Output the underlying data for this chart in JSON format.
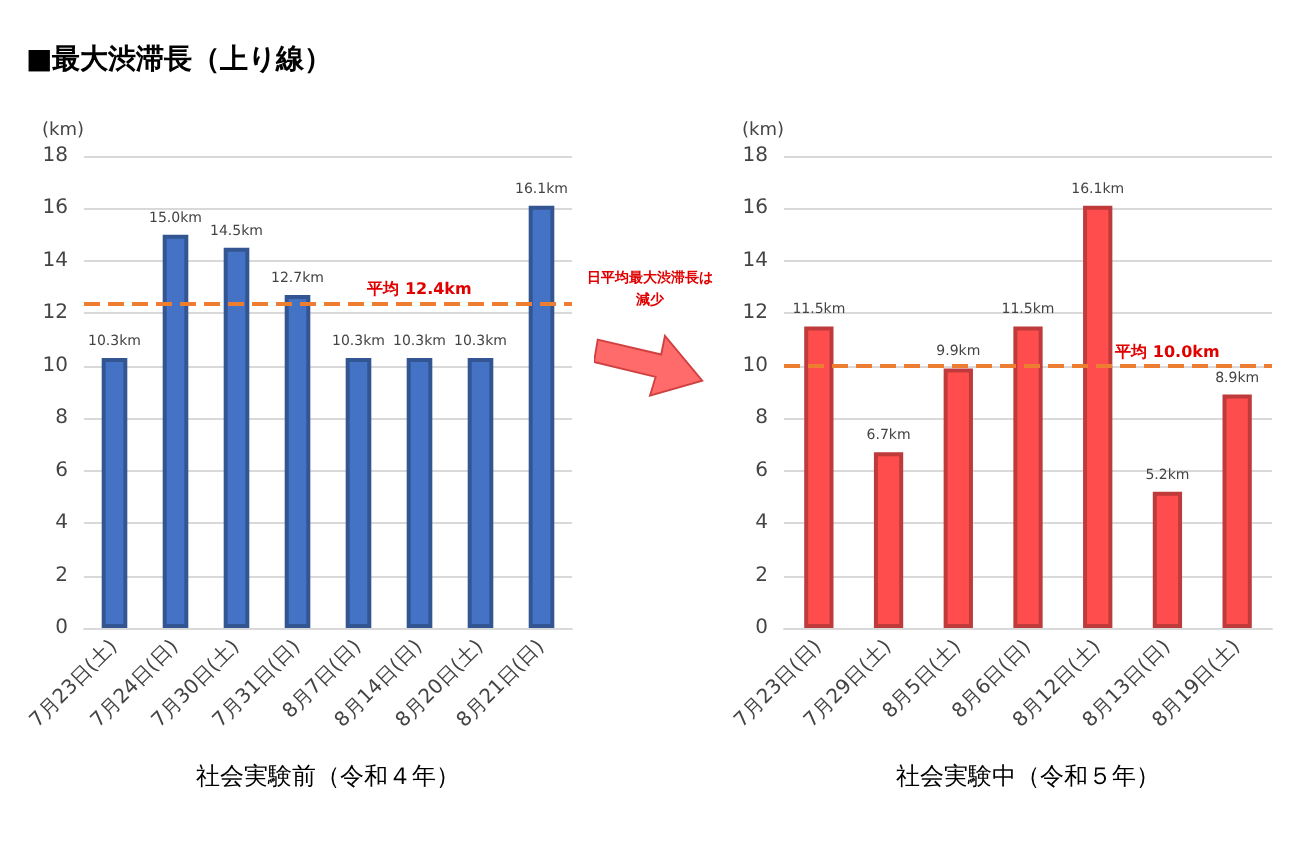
{
  "chart_data": [
    {
      "type": "bar",
      "title": "■最大渋滞長（上り線）",
      "ylabel": "(km)",
      "xlabel": "社会実験前（令和４年）",
      "categories": [
        "7月23日(土)",
        "7月24日(日)",
        "7月30日(土)",
        "7月31日(日)",
        "8月7日(日)",
        "8月14日(日)",
        "8月20日(土)",
        "8月21日(日)"
      ],
      "values": [
        10.3,
        15.0,
        14.5,
        12.7,
        10.3,
        10.3,
        10.3,
        16.1
      ],
      "value_labels": [
        "10.3km",
        "15.0km",
        "14.5km",
        "12.7km",
        "10.3km",
        "10.3km",
        "10.3km",
        "16.1km"
      ],
      "color": "#4472c4",
      "ylim": [
        0,
        18
      ],
      "yticks": [
        0,
        2,
        4,
        6,
        8,
        10,
        12,
        14,
        16,
        18
      ],
      "grid": "y",
      "ref_lines": [
        {
          "axis": "y",
          "value": 12.4,
          "label": "平均 12.4km",
          "color": "#ed7d31",
          "line_style": "dashed"
        }
      ]
    },
    {
      "type": "bar",
      "ylabel": "(km)",
      "xlabel": "社会実験中（令和５年）",
      "categories": [
        "7月23日(日)",
        "7月29日(土)",
        "8月5日(土)",
        "8月6日(日)",
        "8月12日(土)",
        "8月13日(日)",
        "8月19日(土)"
      ],
      "values": [
        11.5,
        6.7,
        9.9,
        11.5,
        16.1,
        5.2,
        8.9
      ],
      "value_labels": [
        "11.5km",
        "6.7km",
        "9.9km",
        "11.5km",
        "16.1km",
        "5.2km",
        "8.9km"
      ],
      "color": "#ff4d4d",
      "ylim": [
        0,
        18
      ],
      "yticks": [
        0,
        2,
        4,
        6,
        8,
        10,
        12,
        14,
        16,
        18
      ],
      "grid": "y",
      "ref_lines": [
        {
          "axis": "y",
          "value": 10.0,
          "label": "平均 10.0km",
          "color": "#ed7d31",
          "line_style": "dashed"
        }
      ],
      "annotations": [
        "日平均最大渋滞長は減少"
      ]
    }
  ]
}
